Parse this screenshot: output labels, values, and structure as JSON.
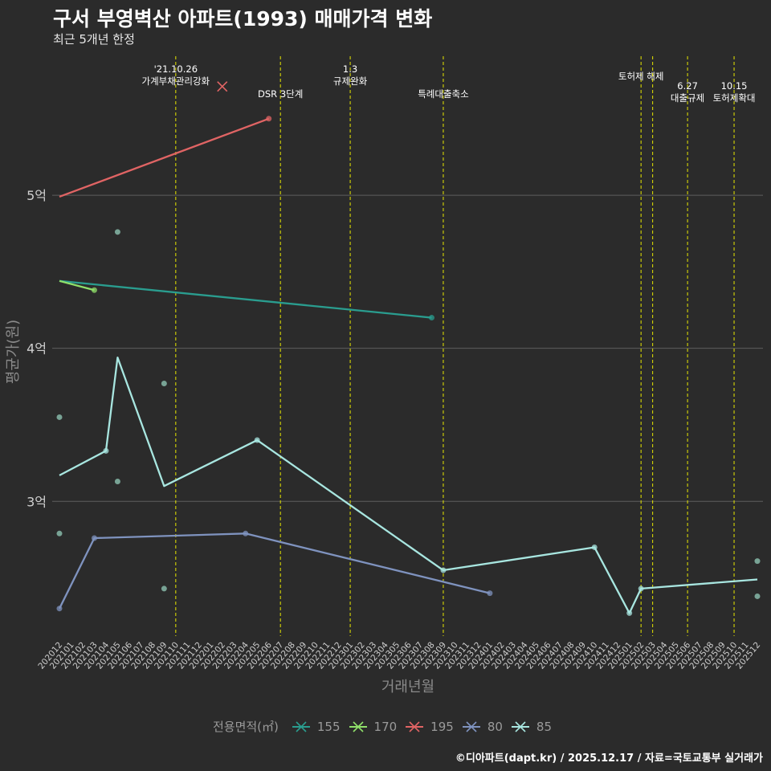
{
  "chart_data": {
    "type": "line",
    "title": "구서 부영벽산 아파트(1993) 매매가격 변화",
    "subtitle": "최근 5개년 한정",
    "xlabel": "거래년월",
    "ylabel": "평균가(원)",
    "caption": "©디아파트(dapt.kr) / 2025.12.17 / 자료=국토교통부 실거래가",
    "legend_title": "전용면적(㎡)",
    "categories": [
      "202012",
      "202101",
      "202102",
      "202103",
      "202104",
      "202105",
      "202106",
      "202107",
      "202108",
      "202109",
      "202110",
      "202111",
      "202112",
      "202201",
      "202202",
      "202203",
      "202204",
      "202205",
      "202206",
      "202207",
      "202208",
      "202209",
      "202210",
      "202211",
      "202212",
      "202301",
      "202302",
      "202303",
      "202304",
      "202305",
      "202306",
      "202307",
      "202308",
      "202309",
      "202310",
      "202311",
      "202312",
      "202401",
      "202402",
      "202403",
      "202404",
      "202405",
      "202406",
      "202407",
      "202408",
      "202409",
      "202410",
      "202411",
      "202412",
      "202501",
      "202502",
      "202503",
      "202504",
      "202505",
      "202506",
      "202507",
      "202508",
      "202509",
      "202510",
      "202511",
      "202512"
    ],
    "yticks": [
      {
        "value": 3.0,
        "label": "3억"
      },
      {
        "value": 4.0,
        "label": "4억"
      },
      {
        "value": 5.0,
        "label": "5억"
      }
    ],
    "ylim": [
      2.12,
      5.95
    ],
    "series": [
      {
        "name": "155",
        "color": "#2a9d8f",
        "line": [
          [
            "202012",
            4.44
          ],
          [
            "202308",
            4.2
          ]
        ],
        "points": [
          [
            "202308",
            4.2
          ]
        ]
      },
      {
        "name": "170",
        "color": "#90e06a",
        "line": [
          [
            "202012",
            4.44
          ],
          [
            "202103",
            4.38
          ]
        ],
        "points": [
          [
            "202103",
            4.38
          ]
        ]
      },
      {
        "name": "195",
        "color": "#e06464",
        "line": [
          [
            "202012",
            4.99
          ],
          [
            "202206",
            5.5
          ]
        ],
        "points": [
          [
            "202206",
            5.5
          ]
        ],
        "cross": [
          [
            "202202",
            5.71
          ]
        ]
      },
      {
        "name": "80",
        "color": "#7f93bf",
        "line": [
          [
            "202012",
            2.3
          ],
          [
            "202103",
            2.76
          ],
          [
            "202204",
            2.79
          ],
          [
            "202401",
            2.4
          ]
        ],
        "points": [
          [
            "202012",
            2.3
          ],
          [
            "202103",
            2.76
          ],
          [
            "202204",
            2.79
          ],
          [
            "202401",
            2.4
          ]
        ]
      },
      {
        "name": "85",
        "color": "#a8e6e0",
        "line": [
          [
            "202012",
            3.17
          ],
          [
            "202104",
            3.33
          ],
          [
            "202105",
            3.94
          ],
          [
            "202109",
            3.1
          ],
          [
            "202205",
            3.4
          ],
          [
            "202309",
            2.55
          ],
          [
            "202410",
            2.7
          ],
          [
            "202501",
            2.27
          ],
          [
            "202502",
            2.43
          ],
          [
            "202512",
            2.49
          ]
        ],
        "points": [
          [
            "202104",
            3.33
          ],
          [
            "202205",
            3.4
          ],
          [
            "202309",
            2.55
          ],
          [
            "202410",
            2.7
          ],
          [
            "202501",
            2.27
          ],
          [
            "202502",
            2.43
          ]
        ]
      }
    ],
    "scatter": [
      {
        "x": "202012",
        "y": 3.55
      },
      {
        "x": "202012",
        "y": 2.79
      },
      {
        "x": "202105",
        "y": 4.76
      },
      {
        "x": "202105",
        "y": 3.13
      },
      {
        "x": "202109",
        "y": 3.77
      },
      {
        "x": "202109",
        "y": 2.43
      },
      {
        "x": "202512",
        "y": 2.61
      },
      {
        "x": "202512",
        "y": 2.38
      }
    ],
    "events": [
      {
        "x": "202110",
        "lines": [
          "'21.10.26",
          "가계부채관리강화"
        ]
      },
      {
        "x": "202207",
        "lines": [
          "DSR 3단계"
        ]
      },
      {
        "x": "202301",
        "lines": [
          "1.3",
          "규제완화"
        ]
      },
      {
        "x": "202309",
        "lines": [
          "특례대출축소"
        ]
      },
      {
        "x": "202502",
        "lines": [
          "토허제 해제"
        ]
      },
      {
        "x": "202503",
        "lines": []
      },
      {
        "x": "202506",
        "lines": [
          "6.27",
          "대출규제"
        ]
      },
      {
        "x": "202510",
        "lines": [
          "10.15",
          "토허제확대"
        ]
      }
    ]
  }
}
